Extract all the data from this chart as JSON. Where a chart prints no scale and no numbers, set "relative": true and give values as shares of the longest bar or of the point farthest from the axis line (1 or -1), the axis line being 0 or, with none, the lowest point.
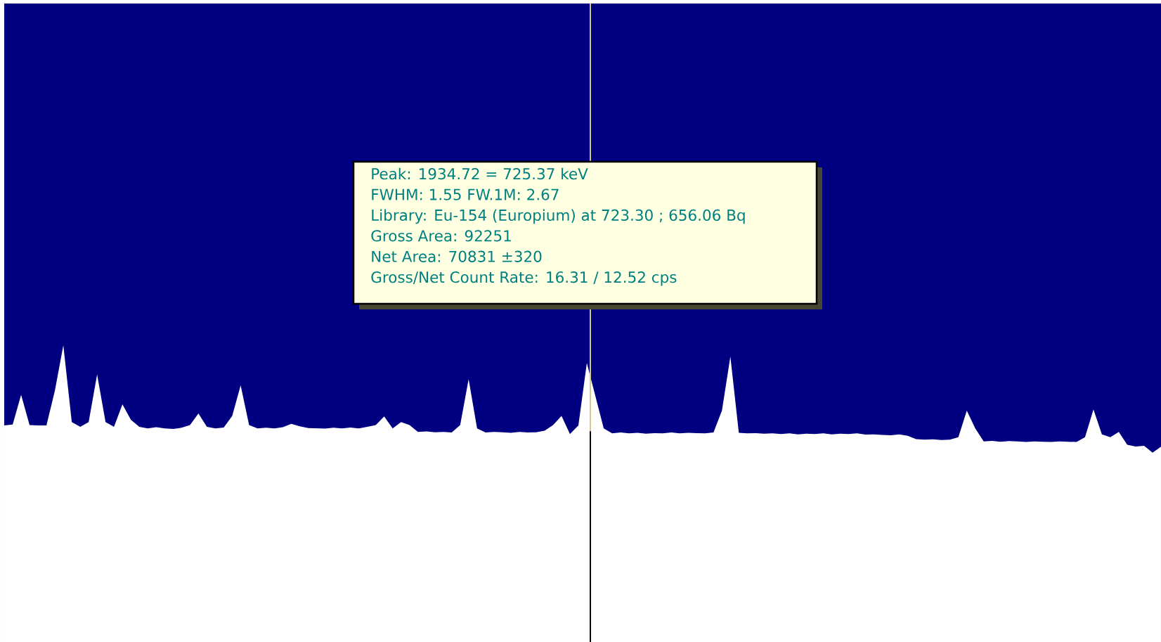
{
  "chart_data": {
    "type": "area",
    "relative": true,
    "categories": [
      null,
      null,
      null,
      null,
      null,
      null,
      null,
      null,
      null,
      null,
      null,
      null,
      null,
      null,
      null,
      null,
      null,
      null,
      null,
      null,
      null,
      null,
      null,
      null,
      null,
      null,
      null,
      null,
      null,
      null,
      null,
      null,
      null,
      null,
      null,
      null,
      null,
      null,
      null,
      null,
      null,
      null,
      null,
      null,
      null,
      null,
      null,
      null,
      null,
      null,
      null,
      null,
      null,
      null,
      null,
      null,
      null,
      null,
      null,
      null,
      null,
      null,
      null,
      null,
      null,
      null,
      null,
      null,
      null,
      null,
      null,
      null,
      null,
      null,
      null,
      null,
      null,
      null,
      null,
      null,
      null,
      null,
      null,
      null,
      null,
      null,
      null,
      null,
      null,
      null,
      null,
      null,
      null,
      null,
      null,
      null,
      null,
      null,
      null,
      null,
      null,
      null,
      null,
      null,
      null,
      null,
      null,
      null,
      null,
      null,
      null,
      null,
      null,
      null,
      null,
      null,
      null,
      null,
      null,
      null,
      null,
      null,
      null,
      null,
      null,
      null,
      null,
      null,
      null,
      null,
      null,
      null,
      null,
      null,
      null,
      null,
      null,
      null
    ],
    "series": [
      {
        "color": "#ffffff",
        "values": [
          0.73,
          0.733,
          0.833,
          0.731,
          0.73,
          0.73,
          0.847,
          1.0,
          0.741,
          0.725,
          0.741,
          0.902,
          0.741,
          0.725,
          0.801,
          0.749,
          0.725,
          0.72,
          0.724,
          0.72,
          0.718,
          0.722,
          0.731,
          0.77,
          0.725,
          0.72,
          0.723,
          0.762,
          0.865,
          0.731,
          0.72,
          0.722,
          0.72,
          0.724,
          0.735,
          0.727,
          0.721,
          0.72,
          0.719,
          0.722,
          0.72,
          0.723,
          0.72,
          0.725,
          0.731,
          0.76,
          0.72,
          0.741,
          0.731,
          0.708,
          0.71,
          0.707,
          0.708,
          0.706,
          0.731,
          0.886,
          0.72,
          0.706,
          0.708,
          0.707,
          0.705,
          0.708,
          0.706,
          0.707,
          0.712,
          0.731,
          0.762,
          0.701,
          0.73,
          0.94,
          null,
          0.72,
          0.703,
          0.706,
          0.703,
          0.705,
          0.702,
          0.704,
          0.703,
          0.706,
          0.703,
          0.705,
          0.704,
          0.703,
          0.706,
          0.78,
          0.962,
          0.705,
          0.703,
          0.704,
          0.702,
          0.703,
          0.701,
          0.703,
          0.7,
          0.702,
          0.701,
          0.703,
          0.7,
          0.702,
          0.701,
          0.703,
          0.699,
          0.7,
          0.698,
          0.697,
          0.7,
          0.695,
          0.684,
          0.682,
          0.683,
          0.681,
          0.682,
          0.69,
          0.78,
          0.72,
          0.676,
          0.678,
          0.675,
          0.677,
          0.676,
          0.674,
          0.676,
          0.675,
          0.674,
          0.676,
          0.675,
          0.674,
          0.69,
          0.784,
          0.7,
          0.69,
          0.708,
          0.665,
          0.659,
          0.661,
          0.638,
          0.658
        ]
      }
    ],
    "annotations": [
      "Peak: 1934.72 = 725.37 keV",
      "FWHM: 1.55  FW.1M: 2.67",
      "Library: Eu-154 (Europium) at 723.30 ;  656.06 Bq",
      "Gross Area: 92251",
      "Net Area: 70831 ±320",
      "Gross/Net Count Rate: 16.31 / 12.52 cps"
    ]
  }
}
